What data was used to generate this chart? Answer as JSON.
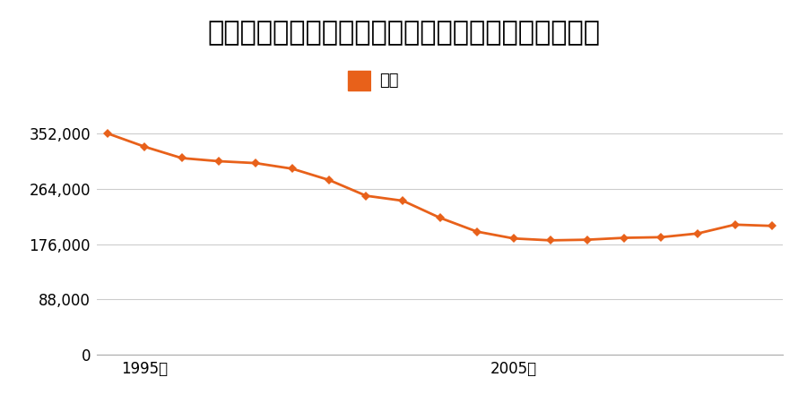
{
  "title": "兵庫県尼崎市富松町１丁目９２６番１２外の地価推移",
  "legend_label": "価格",
  "line_color": "#e8611a",
  "marker_color": "#e8611a",
  "background_color": "#ffffff",
  "years": [
    1994,
    1995,
    1996,
    1997,
    1998,
    1999,
    2000,
    2001,
    2002,
    2003,
    2004,
    2005,
    2006,
    2007,
    2008,
    2009,
    2010,
    2011,
    2012
  ],
  "values": [
    352000,
    331000,
    313000,
    308000,
    305000,
    296000,
    278000,
    253000,
    245000,
    218000,
    196000,
    185000,
    182000,
    183000,
    186000,
    187000,
    193000,
    207000,
    205000
  ],
  "xtick_years": [
    1995,
    2005
  ],
  "xtick_labels": [
    "1995年",
    "2005年"
  ],
  "ytick_values": [
    0,
    88000,
    176000,
    264000,
    352000
  ],
  "ytick_labels": [
    "0",
    "88,000",
    "176,000",
    "264,000",
    "352,000"
  ],
  "ylim": [
    0,
    385000
  ],
  "title_fontsize": 22,
  "axis_fontsize": 12,
  "legend_fontsize": 13,
  "grid_color": "#cccccc"
}
